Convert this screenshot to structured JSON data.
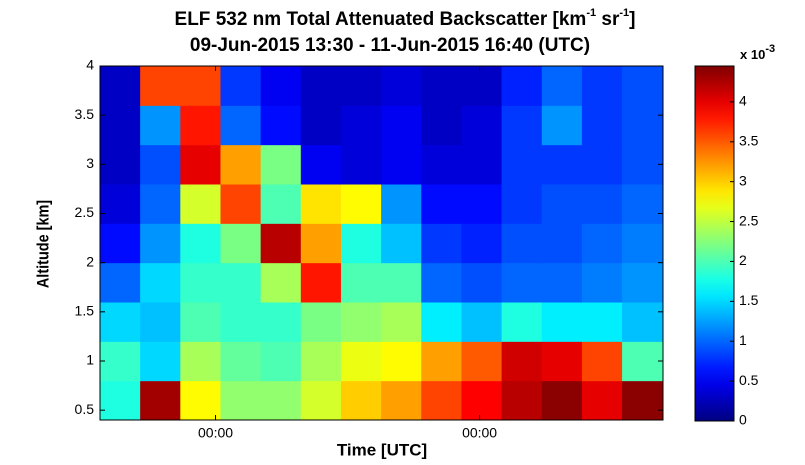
{
  "chart_data": {
    "type": "heatmap",
    "title_parts": [
      "ELF 532 nm Total Attenuated Backscatter [km",
      "-1",
      " sr",
      "-1",
      "]"
    ],
    "subtitle": "09-Jun-2015 13:30 - 11-Jun-2015 16:40 (UTC)",
    "x_label": "Time [UTC]",
    "y_label": "Altitude [km]",
    "colorbar_label_parts": [
      "x 10",
      "-3"
    ],
    "x_edges": [
      0,
      3.65,
      7.3,
      10.95,
      14.6,
      18.25,
      21.9,
      25.55,
      29.2,
      32.85,
      36.5,
      40.15,
      43.8,
      47.45,
      51.17
    ],
    "y_edges": [
      0.4,
      0.8,
      1.2,
      1.6,
      2.0,
      2.4,
      2.8,
      3.2,
      3.6,
      4.0
    ],
    "z": [
      [
        1.8,
        4.3,
        2.8,
        2.3,
        2.3,
        2.6,
        3.0,
        3.2,
        3.6,
        3.9,
        4.2,
        4.4,
        4.0,
        4.4
      ],
      [
        1.9,
        1.5,
        2.4,
        2.1,
        2.0,
        2.4,
        2.7,
        2.8,
        3.2,
        3.5,
        4.1,
        4.0,
        3.6,
        2.0
      ],
      [
        1.5,
        1.4,
        2.0,
        1.9,
        1.9,
        2.2,
        2.3,
        2.4,
        1.6,
        1.4,
        1.8,
        1.6,
        1.6,
        1.4
      ],
      [
        1.0,
        1.5,
        1.9,
        1.9,
        2.4,
        3.8,
        2.0,
        2.0,
        1.0,
        0.9,
        1.0,
        1.0,
        1.1,
        1.2
      ],
      [
        0.6,
        1.2,
        1.8,
        2.2,
        4.2,
        3.2,
        1.8,
        1.4,
        0.8,
        0.7,
        0.9,
        0.9,
        1.0,
        1.1
      ],
      [
        0.4,
        1.0,
        2.6,
        3.6,
        2.0,
        2.9,
        2.8,
        1.2,
        0.6,
        0.6,
        0.8,
        0.9,
        0.9,
        1.0
      ],
      [
        0.3,
        0.9,
        4.0,
        3.2,
        2.2,
        0.5,
        0.4,
        0.5,
        0.4,
        0.4,
        0.8,
        0.8,
        0.8,
        0.9
      ],
      [
        0.3,
        1.2,
        3.8,
        1.0,
        0.6,
        0.3,
        0.4,
        0.5,
        0.3,
        0.4,
        0.8,
        1.2,
        0.8,
        0.9
      ],
      [
        0.3,
        3.6,
        3.6,
        0.8,
        0.5,
        0.3,
        0.3,
        0.4,
        0.3,
        0.3,
        0.7,
        1.0,
        0.8,
        0.9
      ]
    ],
    "colormap": "jet",
    "xlim": [
      0,
      51.17
    ],
    "xticks": [
      {
        "value": 10.5,
        "label": "00:00"
      },
      {
        "value": 34.5,
        "label": "00:00"
      }
    ],
    "ylim": [
      0.4,
      4
    ],
    "yticks": [
      0.5,
      1,
      1.5,
      2,
      2.5,
      3,
      3.5,
      4
    ],
    "clim": [
      0,
      4.45
    ],
    "cticks": [
      0,
      0.5,
      1,
      1.5,
      2,
      2.5,
      3,
      3.5,
      4
    ]
  }
}
